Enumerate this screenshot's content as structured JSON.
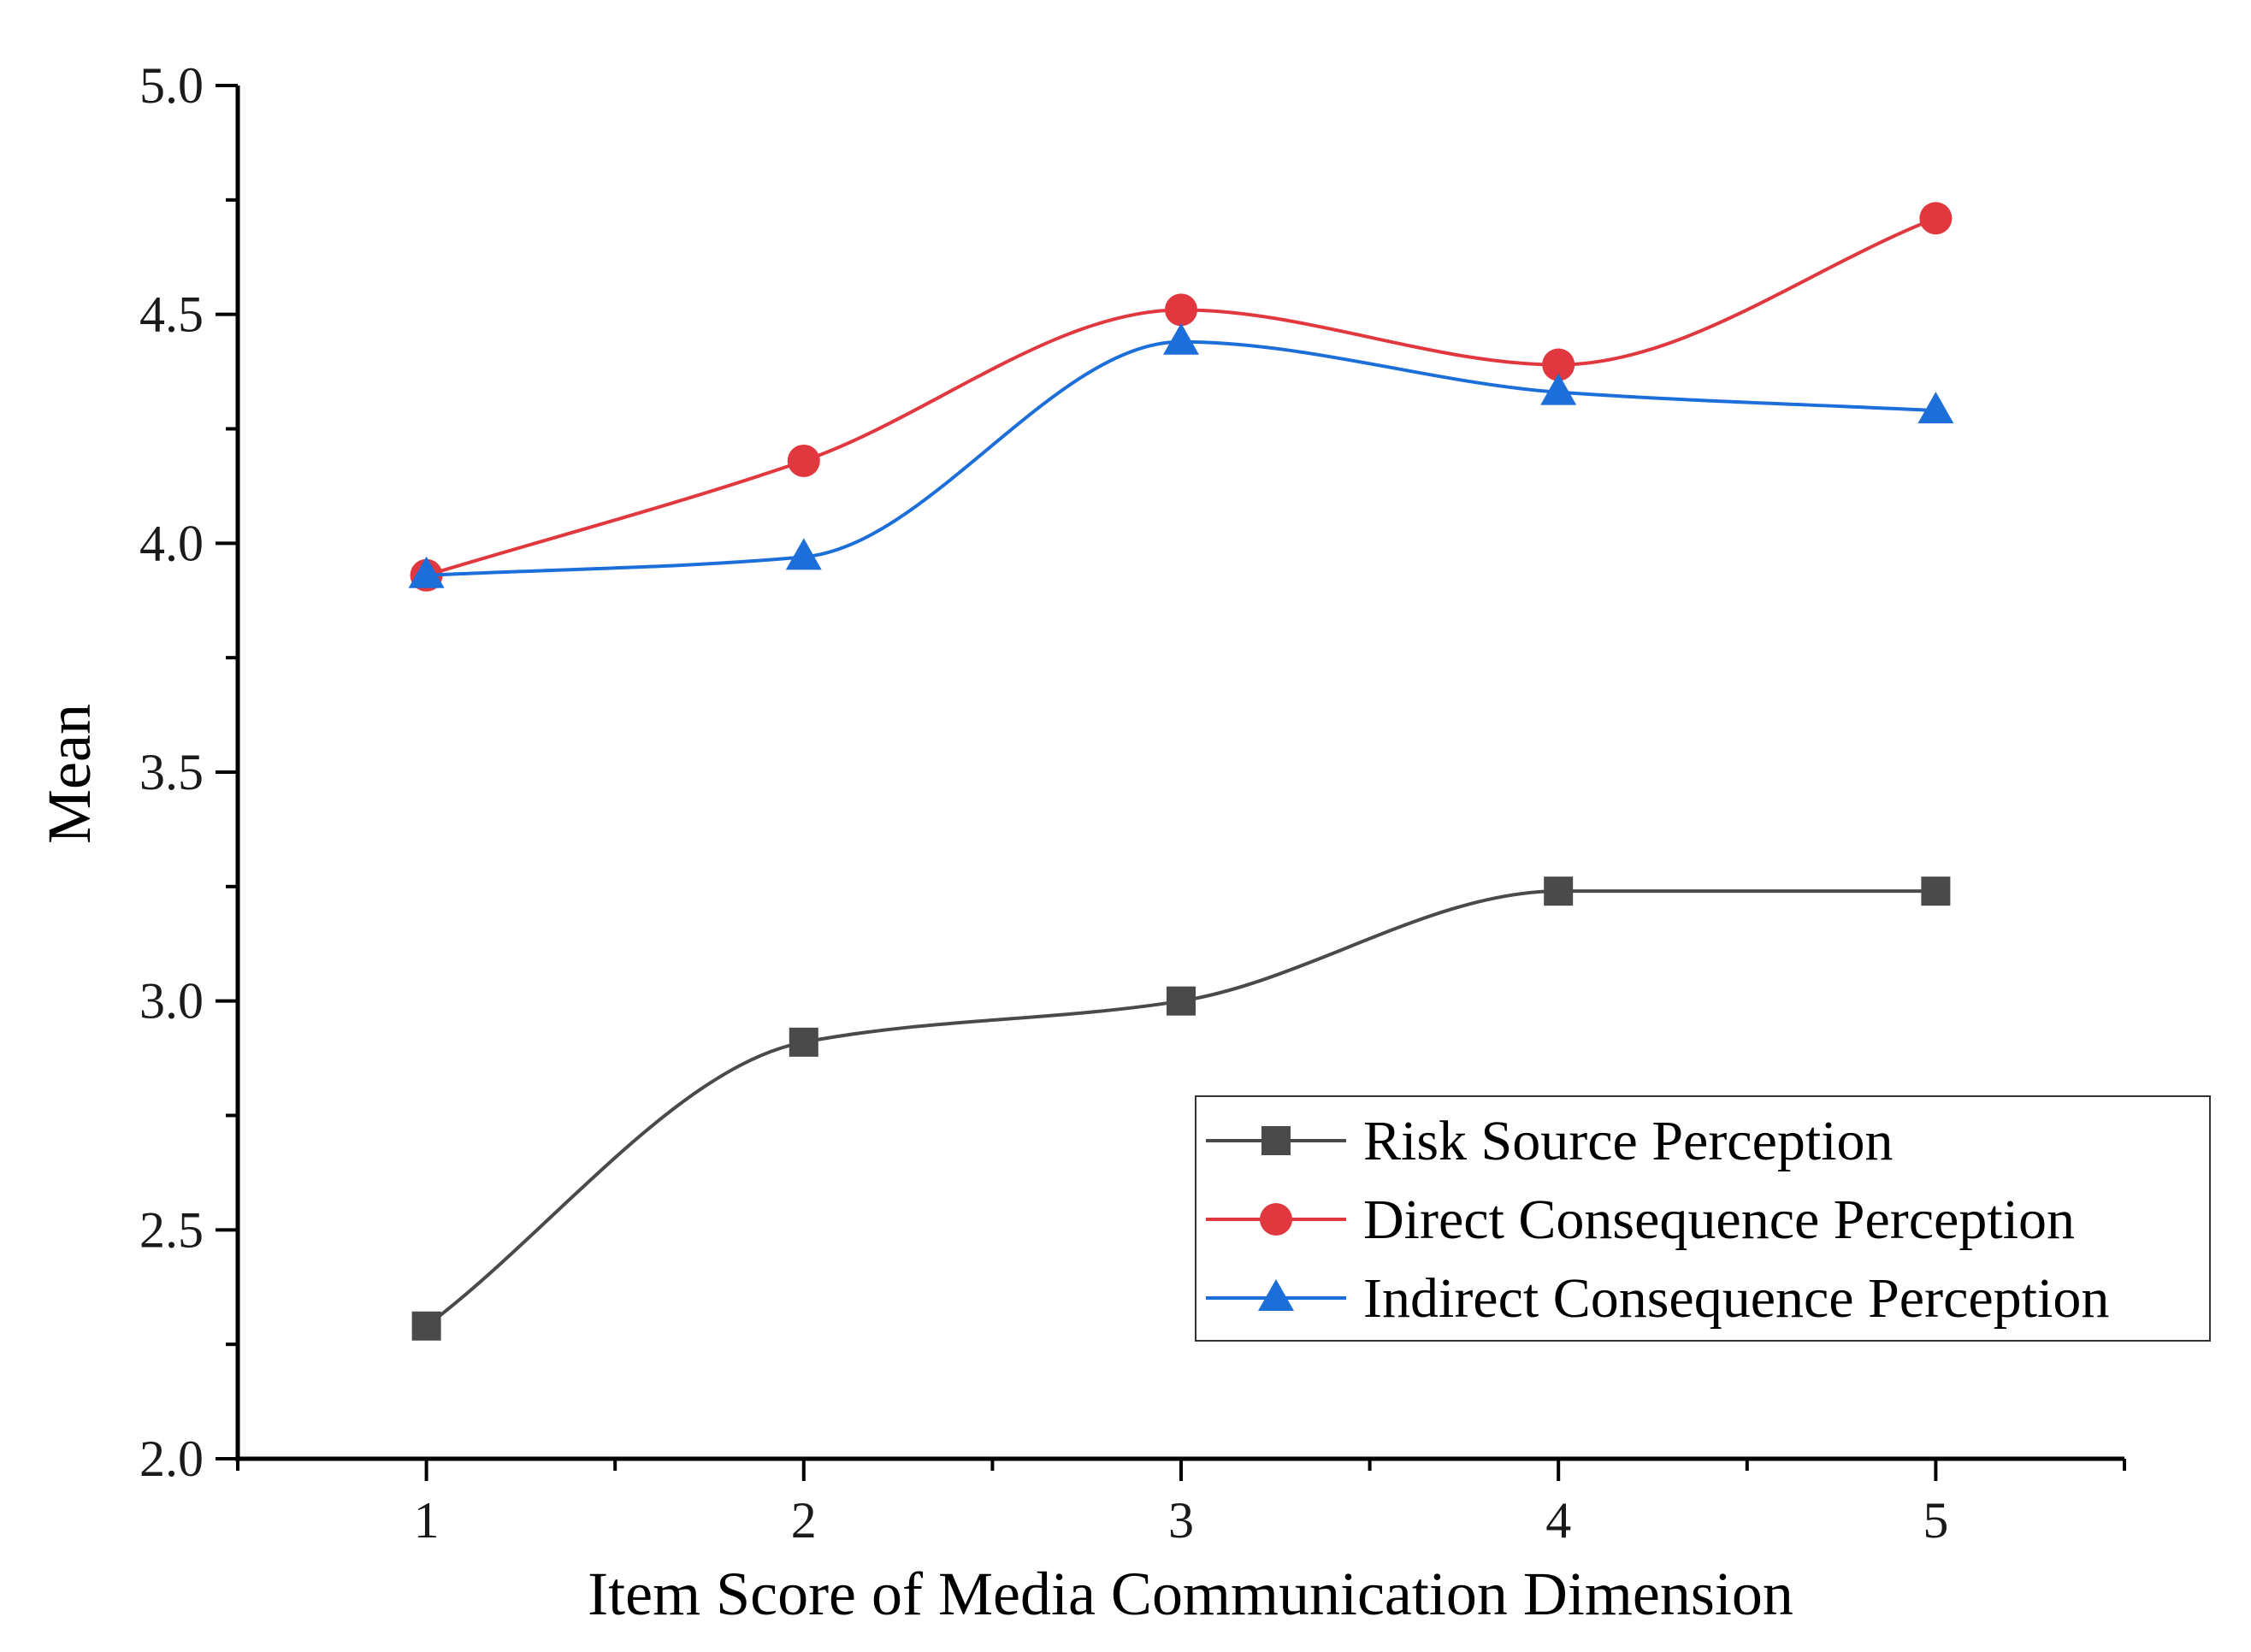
{
  "chart_data": {
    "type": "line",
    "title": "",
    "xlabel": "Item Score of Media Communication Dimension",
    "ylabel": "Mean",
    "x": [
      1,
      2,
      3,
      4,
      5
    ],
    "x_tick_labels": [
      "1",
      "2",
      "3",
      "4",
      "5"
    ],
    "xlim": [
      0.5,
      5.5
    ],
    "ylim": [
      2.0,
      5.0
    ],
    "y_ticks": [
      2.0,
      2.5,
      3.0,
      3.5,
      4.0,
      4.5,
      5.0
    ],
    "y_tick_labels": [
      "2.0",
      "2.5",
      "3.0",
      "3.5",
      "4.0",
      "4.5",
      "5.0"
    ],
    "grid": false,
    "smooth": true,
    "legend_position": "lower-right",
    "series": [
      {
        "name": "Risk Source Perception",
        "values": [
          2.29,
          2.91,
          3.0,
          3.24,
          3.24
        ],
        "color": "#4a4a4a",
        "marker": "square"
      },
      {
        "name": "Direct Consequence Perception",
        "values": [
          3.93,
          4.18,
          4.51,
          4.39,
          4.71
        ],
        "color": "#e0383e",
        "marker": "circle"
      },
      {
        "name": "Indirect Consequence Perception",
        "values": [
          3.93,
          3.97,
          4.44,
          4.33,
          4.29
        ],
        "color": "#1c6ed8",
        "marker": "triangle"
      }
    ]
  }
}
